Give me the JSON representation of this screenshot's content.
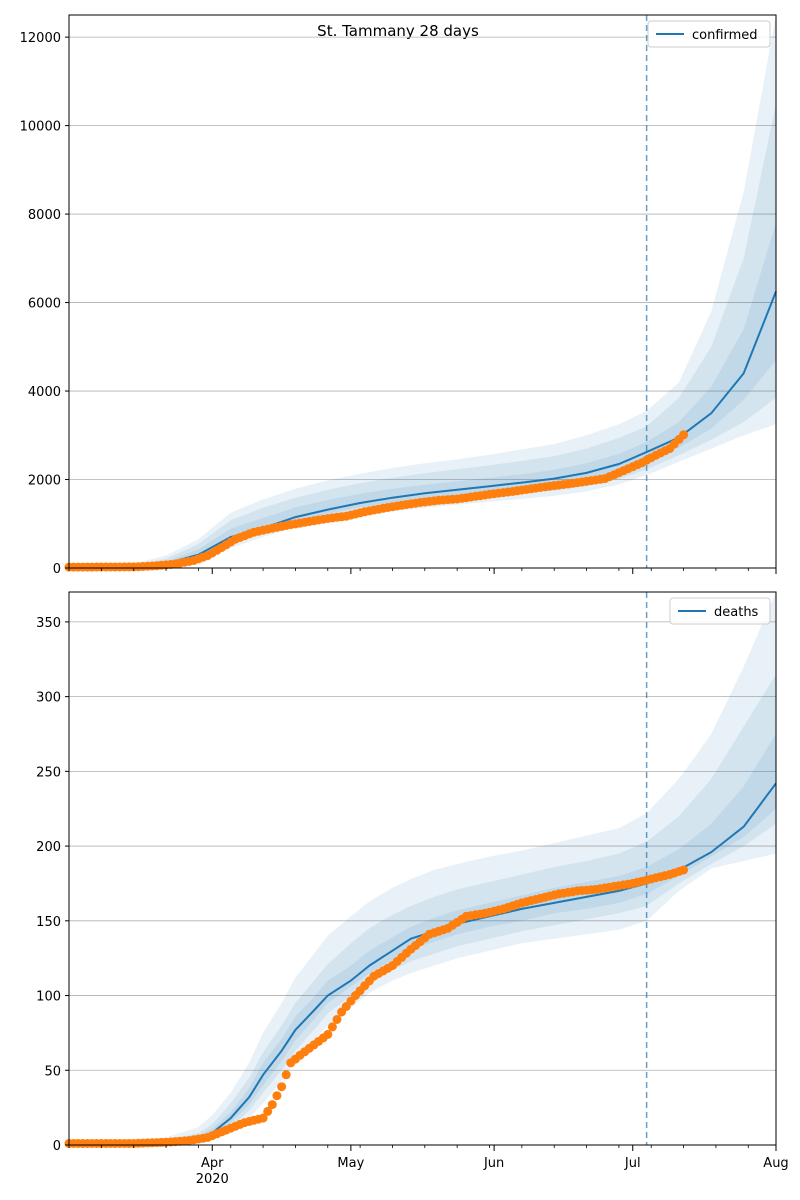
{
  "title": "St. Tammany 28 days",
  "colors": {
    "model": "#1f77b4",
    "observed": "#ff7f0e",
    "grid": "#b0b0b0"
  },
  "x_axis": {
    "range": [
      "2020-03-01",
      "2020-08-01"
    ],
    "month_ticks": [
      {
        "date": "2020-04-01",
        "label": "Apr",
        "sublabel": "2020"
      },
      {
        "date": "2020-05-01",
        "label": "May",
        "sublabel": ""
      },
      {
        "date": "2020-06-01",
        "label": "Jun",
        "sublabel": ""
      },
      {
        "date": "2020-07-01",
        "label": "Jul",
        "sublabel": ""
      },
      {
        "date": "2020-08-01",
        "label": "Aug",
        "sublabel": ""
      }
    ]
  },
  "chart_data": [
    {
      "type": "line",
      "legend": "confirmed",
      "legend_position": "top-right",
      "grid": "horizontal",
      "ylim": [
        0,
        12500
      ],
      "yticks": [
        0,
        2000,
        4000,
        6000,
        8000,
        10000,
        12000
      ],
      "forecast_start": "2020-07-04",
      "model_median": {
        "x": [
          "2020-03-01",
          "2020-03-15",
          "2020-03-22",
          "2020-03-29",
          "2020-04-05",
          "2020-04-12",
          "2020-04-19",
          "2020-04-26",
          "2020-05-03",
          "2020-05-10",
          "2020-05-17",
          "2020-05-24",
          "2020-05-31",
          "2020-06-07",
          "2020-06-14",
          "2020-06-21",
          "2020-06-28",
          "2020-07-04",
          "2020-07-11",
          "2020-07-18",
          "2020-07-25",
          "2020-08-01"
        ],
        "y": [
          10,
          40,
          100,
          300,
          700,
          900,
          1150,
          1320,
          1470,
          1590,
          1690,
          1770,
          1850,
          1930,
          2020,
          2150,
          2350,
          2620,
          2950,
          3500,
          4400,
          6250
        ]
      },
      "bands": [
        {
          "lower": [
            5,
            20,
            55,
            160,
            450,
            700,
            920,
            1060,
            1180,
            1280,
            1360,
            1430,
            1500,
            1560,
            1630,
            1730,
            1890,
            2100,
            2400,
            2700,
            3000,
            3250
          ],
          "upper": [
            30,
            100,
            280,
            650,
            1250,
            1550,
            1790,
            1980,
            2130,
            2260,
            2370,
            2460,
            2560,
            2680,
            2800,
            3000,
            3250,
            3550,
            4200,
            5800,
            8500,
            12500
          ]
        },
        {
          "lower": [
            6,
            25,
            65,
            200,
            530,
            780,
            1000,
            1150,
            1280,
            1380,
            1460,
            1540,
            1610,
            1680,
            1750,
            1850,
            2010,
            2230,
            2550,
            2900,
            3300,
            3850
          ],
          "upper": [
            22,
            75,
            210,
            540,
            1080,
            1360,
            1590,
            1770,
            1920,
            2040,
            2140,
            2230,
            2320,
            2420,
            2530,
            2700,
            2940,
            3200,
            3850,
            5000,
            7000,
            10500
          ]
        },
        {
          "lower": [
            8,
            30,
            80,
            240,
            600,
            840,
            1070,
            1230,
            1370,
            1480,
            1570,
            1650,
            1730,
            1800,
            1880,
            1990,
            2160,
            2400,
            2720,
            3150,
            3800,
            4700
          ],
          "upper": [
            16,
            55,
            150,
            420,
            890,
            1130,
            1370,
            1540,
            1680,
            1790,
            1880,
            1960,
            2040,
            2120,
            2220,
            2370,
            2580,
            2850,
            3300,
            4100,
            5400,
            7800
          ]
        }
      ],
      "observed": {
        "x": [
          "2020-03-01",
          "2020-03-08",
          "2020-03-15",
          "2020-03-20",
          "2020-03-24",
          "2020-03-28",
          "2020-03-31",
          "2020-04-03",
          "2020-04-06",
          "2020-04-10",
          "2020-04-14",
          "2020-04-18",
          "2020-04-22",
          "2020-04-26",
          "2020-04-30",
          "2020-05-04",
          "2020-05-08",
          "2020-05-12",
          "2020-05-16",
          "2020-05-20",
          "2020-05-24",
          "2020-05-28",
          "2020-06-01",
          "2020-06-05",
          "2020-06-09",
          "2020-06-13",
          "2020-06-17",
          "2020-06-21",
          "2020-06-25",
          "2020-06-29",
          "2020-07-03",
          "2020-07-06",
          "2020-07-09",
          "2020-07-12"
        ],
        "y": [
          20,
          22,
          25,
          50,
          90,
          170,
          280,
          460,
          650,
          810,
          900,
          980,
          1050,
          1120,
          1170,
          1270,
          1350,
          1420,
          1480,
          1530,
          1560,
          1620,
          1680,
          1730,
          1790,
          1850,
          1900,
          1960,
          2020,
          2200,
          2380,
          2550,
          2700,
          3010
        ]
      }
    },
    {
      "type": "line",
      "legend": "deaths",
      "legend_position": "top-right",
      "grid": "horizontal",
      "ylim": [
        0,
        370
      ],
      "yticks": [
        0,
        50,
        100,
        150,
        200,
        250,
        300,
        350
      ],
      "forecast_start": "2020-07-04",
      "model_median": {
        "x": [
          "2020-03-01",
          "2020-03-15",
          "2020-03-22",
          "2020-03-29",
          "2020-04-01",
          "2020-04-05",
          "2020-04-09",
          "2020-04-12",
          "2020-04-16",
          "2020-04-19",
          "2020-04-23",
          "2020-04-26",
          "2020-05-01",
          "2020-05-05",
          "2020-05-10",
          "2020-05-14",
          "2020-05-19",
          "2020-05-24",
          "2020-05-31",
          "2020-06-07",
          "2020-06-14",
          "2020-06-21",
          "2020-06-28",
          "2020-07-04",
          "2020-07-11",
          "2020-07-18",
          "2020-07-25",
          "2020-08-01"
        ],
        "y": [
          0,
          0.5,
          1.5,
          4,
          8,
          18,
          32,
          47,
          63,
          77,
          90,
          100,
          110,
          120,
          130,
          138,
          143,
          148,
          153,
          158,
          162,
          166,
          170,
          175,
          184,
          196,
          213,
          242
        ]
      },
      "bands": [
        {
          "lower": [
            0,
            0,
            0.5,
            2,
            4,
            9,
            18,
            28,
            43,
            56,
            70,
            80,
            92,
            102,
            110,
            115,
            120,
            125,
            130,
            135,
            138,
            141,
            144,
            150,
            170,
            185,
            190,
            195
          ],
          "upper": [
            1,
            2,
            5,
            12,
            20,
            35,
            55,
            75,
            95,
            112,
            128,
            140,
            153,
            163,
            172,
            178,
            184,
            188,
            193,
            197,
            202,
            207,
            212,
            222,
            245,
            275,
            320,
            370
          ]
        },
        {
          "lower": [
            0,
            0.2,
            1,
            3,
            5,
            12,
            23,
            35,
            50,
            63,
            77,
            88,
            100,
            108,
            117,
            123,
            128,
            133,
            138,
            143,
            147,
            151,
            155,
            160,
            175,
            188,
            200,
            215
          ],
          "upper": [
            0.5,
            1.5,
            3,
            8,
            14,
            28,
            45,
            62,
            80,
            95,
            110,
            121,
            135,
            145,
            154,
            160,
            166,
            171,
            176,
            181,
            186,
            190,
            195,
            203,
            220,
            245,
            280,
            315
          ]
        },
        {
          "lower": [
            0,
            0.3,
            1.2,
            3.5,
            6,
            15,
            27,
            40,
            56,
            70,
            84,
            95,
            106,
            115,
            124,
            131,
            136,
            141,
            146,
            150,
            155,
            158,
            162,
            168,
            180,
            193,
            206,
            225
          ],
          "upper": [
            0.4,
            1,
            2.5,
            6,
            11,
            22,
            38,
            55,
            71,
            86,
            99,
            110,
            120,
            130,
            139,
            146,
            152,
            157,
            162,
            167,
            172,
            176,
            180,
            186,
            198,
            215,
            240,
            275
          ]
        }
      ],
      "observed": {
        "x": [
          "2020-03-01",
          "2020-03-15",
          "2020-03-23",
          "2020-03-27",
          "2020-03-31",
          "2020-04-04",
          "2020-04-08",
          "2020-04-12",
          "2020-04-14",
          "2020-04-16",
          "2020-04-18",
          "2020-04-20",
          "2020-04-23",
          "2020-04-26",
          "2020-04-29",
          "2020-05-02",
          "2020-05-06",
          "2020-05-10",
          "2020-05-14",
          "2020-05-18",
          "2020-05-22",
          "2020-05-26",
          "2020-05-30",
          "2020-06-03",
          "2020-06-07",
          "2020-06-11",
          "2020-06-15",
          "2020-06-19",
          "2020-06-23",
          "2020-06-27",
          "2020-07-01",
          "2020-07-05",
          "2020-07-09",
          "2020-07-12"
        ],
        "y": [
          1,
          1,
          2,
          3,
          5,
          10,
          15,
          18,
          27,
          39,
          55,
          60,
          67,
          74,
          89,
          100,
          113,
          120,
          131,
          141,
          145,
          153,
          155,
          158,
          162,
          165,
          168,
          170,
          171,
          173,
          175,
          178,
          181,
          184
        ]
      }
    }
  ]
}
